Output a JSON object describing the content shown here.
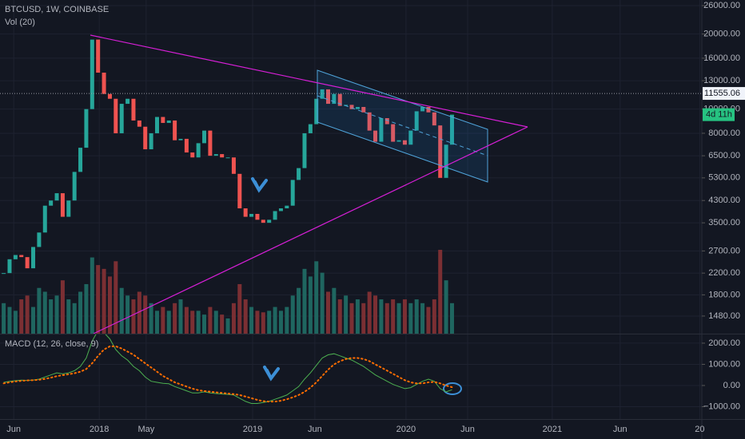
{
  "chart_data": {
    "type": "candlestick",
    "title": "BTCUSD, 1W, COINBASE",
    "volume_label": "Vol (20)",
    "log_scale": true,
    "grid": true,
    "up_color": "#26a69a",
    "down_color": "#ef5350",
    "volume_up_color": "#1f6660",
    "volume_down_color": "#7b2f33",
    "x": [
      -2,
      0,
      2,
      4,
      6,
      8,
      10,
      12,
      14,
      16,
      18,
      20,
      22,
      24,
      26,
      28,
      30,
      32,
      34,
      36,
      38,
      40,
      42,
      44,
      46,
      48,
      50,
      52,
      54,
      56,
      58,
      60,
      62,
      64,
      66,
      68,
      70,
      72,
      74,
      76,
      78,
      80,
      82,
      84,
      86,
      88,
      90,
      92,
      94,
      96,
      98,
      100,
      102,
      104,
      106,
      108,
      110,
      112,
      114,
      116,
      118,
      120,
      122,
      124,
      126,
      128,
      130,
      132,
      134,
      136,
      138,
      140,
      142,
      144,
      146,
      148,
      150
    ],
    "close": [
      2200,
      2500,
      2600,
      2550,
      2300,
      2800,
      3200,
      4100,
      4300,
      4600,
      3700,
      4300,
      5600,
      7000,
      10000,
      19000,
      14000,
      11500,
      11000,
      8000,
      10500,
      11000,
      9000,
      8500,
      6900,
      8000,
      9300,
      8800,
      9000,
      7500,
      7600,
      6700,
      6400,
      7300,
      8200,
      6500,
      6600,
      6400,
      6400,
      5500,
      4000,
      3700,
      3800,
      3600,
      3500,
      3600,
      3900,
      4000,
      4100,
      5200,
      5800,
      8000,
      8700,
      11000,
      12000,
      10500,
      11500,
      10300,
      10400,
      10000,
      10200,
      9700,
      8200,
      7400,
      9200,
      8700,
      7400,
      7500,
      7200,
      8200,
      9800,
      10200,
      9700,
      8600,
      5300,
      7200,
      9500
    ],
    "volume": [
      40,
      35,
      30,
      45,
      50,
      35,
      60,
      55,
      45,
      50,
      70,
      45,
      40,
      55,
      65,
      100,
      90,
      85,
      75,
      95,
      60,
      50,
      45,
      55,
      50,
      40,
      30,
      35,
      30,
      40,
      45,
      35,
      30,
      30,
      25,
      35,
      30,
      25,
      20,
      40,
      65,
      45,
      35,
      30,
      28,
      30,
      35,
      30,
      35,
      50,
      60,
      85,
      75,
      95,
      80,
      55,
      60,
      45,
      50,
      40,
      45,
      40,
      55,
      50,
      45,
      40,
      45,
      40,
      45,
      40,
      45,
      40,
      35,
      45,
      110,
      70,
      40
    ],
    "last_price": 11555.06,
    "countdown": "4d 11h",
    "xlim": [
      -3.25,
      234.7
    ],
    "xticks": [
      {
        "value": 1.4,
        "label": "Jun"
      },
      {
        "value": 30.4,
        "label": "2018"
      },
      {
        "value": 46.3,
        "label": "May"
      },
      {
        "value": 82.4,
        "label": "2019"
      },
      {
        "value": 103.5,
        "label": "Jun"
      },
      {
        "value": 134.4,
        "label": "2020"
      },
      {
        "value": 155.3,
        "label": "Jun"
      },
      {
        "value": 184,
        "label": "2021"
      },
      {
        "value": 207,
        "label": "Jun"
      },
      {
        "value": 234,
        "label": "20"
      }
    ],
    "ylim": [
      1258,
      27380
    ],
    "yticks": [
      {
        "value": 26000,
        "label": "26000.00"
      },
      {
        "value": 20000,
        "label": "20000.00"
      },
      {
        "value": 16000,
        "label": "16000.00"
      },
      {
        "value": 13000,
        "label": "13000.00"
      },
      {
        "value": 10000,
        "label": "10000.00"
      },
      {
        "value": 8000,
        "label": "8000.00"
      },
      {
        "value": 6500,
        "label": "6500.00"
      },
      {
        "value": 5300,
        "label": "5300.00"
      },
      {
        "value": 4300,
        "label": "4300.00"
      },
      {
        "value": 3500,
        "label": "3500.00"
      },
      {
        "value": 2700,
        "label": "2700.00"
      },
      {
        "value": 2200,
        "label": "2200.00"
      },
      {
        "value": 1800,
        "label": "1800.00"
      },
      {
        "value": 1480,
        "label": "1480.00"
      }
    ],
    "indicator": {
      "type": "line",
      "title": "MACD (12, 26, close, 9)",
      "ylim": [
        -1585,
        2450
      ],
      "yticks": [
        {
          "value": 2000,
          "label": "2000.00"
        },
        {
          "value": 1000,
          "label": "1000.00"
        },
        {
          "value": 0,
          "label": "0.00"
        },
        {
          "value": -1000,
          "label": "−1000.00"
        }
      ],
      "series": [
        {
          "color": "#4caf50",
          "dotted": false,
          "values": [
            150,
            200,
            230,
            250,
            240,
            260,
            300,
            400,
            500,
            600,
            550,
            600,
            700,
            900,
            1300,
            2100,
            2600,
            2500,
            2200,
            1700,
            1400,
            1200,
            900,
            700,
            400,
            200,
            150,
            100,
            80,
            -50,
            -150,
            -250,
            -350,
            -350,
            -300,
            -350,
            -380,
            -400,
            -420,
            -450,
            -600,
            -750,
            -850,
            -850,
            -800,
            -750,
            -650,
            -550,
            -450,
            -250,
            -50,
            300,
            600,
            950,
            1300,
            1450,
            1500,
            1400,
            1300,
            1200,
            1050,
            900,
            700,
            500,
            350,
            200,
            50,
            -50,
            -150,
            -100,
            50,
            200,
            300,
            200,
            -150,
            -300,
            -200
          ]
        },
        {
          "color": "#ff6d00",
          "dotted": true,
          "values": [
            100,
            150,
            190,
            220,
            240,
            250,
            270,
            310,
            370,
            440,
            490,
            530,
            580,
            650,
            780,
            1050,
            1400,
            1700,
            1850,
            1850,
            1750,
            1600,
            1450,
            1250,
            1050,
            850,
            650,
            450,
            300,
            150,
            50,
            -50,
            -150,
            -220,
            -260,
            -290,
            -320,
            -350,
            -380,
            -410,
            -450,
            -520,
            -600,
            -680,
            -740,
            -760,
            -760,
            -720,
            -650,
            -560,
            -450,
            -300,
            -100,
            150,
            450,
            750,
            1000,
            1150,
            1250,
            1300,
            1300,
            1250,
            1150,
            1000,
            850,
            700,
            550,
            400,
            250,
            150,
            100,
            100,
            150,
            170,
            100,
            0,
            -80
          ]
        }
      ]
    }
  }
}
